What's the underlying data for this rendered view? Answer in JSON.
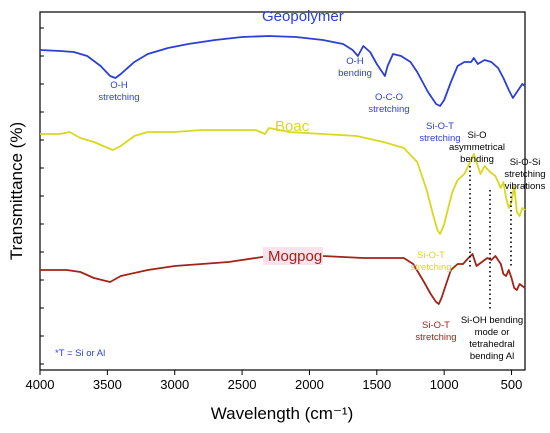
{
  "chart_data": {
    "type": "line",
    "title": "",
    "xlabel": "Wavelength (cm⁻¹)",
    "ylabel": "Transmittance (%)",
    "xlim": [
      4000,
      400
    ],
    "x_reversed": true,
    "x_ticks": [
      4000,
      3500,
      3000,
      2500,
      2000,
      1500,
      1000,
      500
    ],
    "y_tick_labels": false,
    "grid": false,
    "series": [
      {
        "name": "Geopolymer",
        "color": "#2b3fd6",
        "points": [
          [
            4000,
            14
          ],
          [
            3850,
            14.5
          ],
          [
            3750,
            15
          ],
          [
            3650,
            17
          ],
          [
            3550,
            22
          ],
          [
            3480,
            27
          ],
          [
            3440,
            28
          ],
          [
            3400,
            26
          ],
          [
            3300,
            20
          ],
          [
            3200,
            16
          ],
          [
            3050,
            13
          ],
          [
            2900,
            11
          ],
          [
            2700,
            9
          ],
          [
            2500,
            7.5
          ],
          [
            2300,
            7
          ],
          [
            2100,
            7.5
          ],
          [
            1900,
            9
          ],
          [
            1750,
            11
          ],
          [
            1680,
            14
          ],
          [
            1640,
            17
          ],
          [
            1600,
            12
          ],
          [
            1550,
            15
          ],
          [
            1500,
            21
          ],
          [
            1470,
            24
          ],
          [
            1440,
            27
          ],
          [
            1420,
            22
          ],
          [
            1380,
            16
          ],
          [
            1320,
            17
          ],
          [
            1250,
            20
          ],
          [
            1200,
            25
          ],
          [
            1120,
            35
          ],
          [
            1060,
            41
          ],
          [
            1030,
            42
          ],
          [
            1000,
            39
          ],
          [
            950,
            30
          ],
          [
            900,
            22
          ],
          [
            850,
            20
          ],
          [
            800,
            20
          ],
          [
            780,
            18
          ],
          [
            750,
            21
          ],
          [
            700,
            19
          ],
          [
            650,
            20
          ],
          [
            600,
            23
          ],
          [
            560,
            28
          ],
          [
            520,
            34
          ],
          [
            490,
            38
          ],
          [
            460,
            35
          ],
          [
            420,
            31
          ],
          [
            400,
            32
          ]
        ]
      },
      {
        "name": "Boac",
        "color": "#d8d81e",
        "points": [
          [
            4000,
            56
          ],
          [
            3850,
            56
          ],
          [
            3780,
            55
          ],
          [
            3700,
            58
          ],
          [
            3600,
            60
          ],
          [
            3530,
            62
          ],
          [
            3460,
            64
          ],
          [
            3400,
            62
          ],
          [
            3300,
            57
          ],
          [
            3200,
            55
          ],
          [
            3000,
            55
          ],
          [
            2800,
            54
          ],
          [
            2600,
            54
          ],
          [
            2400,
            54
          ],
          [
            2330,
            56
          ],
          [
            2300,
            53
          ],
          [
            2150,
            55
          ],
          [
            1900,
            56
          ],
          [
            1650,
            57
          ],
          [
            1450,
            60
          ],
          [
            1300,
            63
          ],
          [
            1200,
            70
          ],
          [
            1130,
            84
          ],
          [
            1080,
            97
          ],
          [
            1050,
            104
          ],
          [
            1030,
            106
          ],
          [
            1000,
            101
          ],
          [
            970,
            93
          ],
          [
            940,
            85
          ],
          [
            900,
            79
          ],
          [
            850,
            76
          ],
          [
            800,
            69
          ],
          [
            780,
            66
          ],
          [
            760,
            70
          ],
          [
            730,
            76
          ],
          [
            700,
            72
          ],
          [
            660,
            75
          ],
          [
            620,
            77
          ],
          [
            580,
            83
          ],
          [
            560,
            80
          ],
          [
            540,
            88
          ],
          [
            520,
            93
          ],
          [
            500,
            90
          ],
          [
            480,
            82
          ],
          [
            460,
            95
          ],
          [
            440,
            97
          ],
          [
            420,
            93
          ],
          [
            400,
            94
          ]
        ]
      },
      {
        "name": "Mogpog",
        "color": "#a02418",
        "points": [
          [
            4000,
            124
          ],
          [
            3800,
            124
          ],
          [
            3700,
            125
          ],
          [
            3600,
            128
          ],
          [
            3480,
            130
          ],
          [
            3400,
            127
          ],
          [
            3200,
            124
          ],
          [
            3000,
            122
          ],
          [
            2800,
            121
          ],
          [
            2600,
            120
          ],
          [
            2400,
            118
          ],
          [
            2300,
            117
          ],
          [
            2100,
            116
          ],
          [
            1900,
            117
          ],
          [
            1600,
            118
          ],
          [
            1450,
            118
          ],
          [
            1300,
            118
          ],
          [
            1230,
            121
          ],
          [
            1150,
            130
          ],
          [
            1100,
            136
          ],
          [
            1060,
            140
          ],
          [
            1040,
            141
          ],
          [
            1020,
            138
          ],
          [
            990,
            132
          ],
          [
            950,
            124
          ],
          [
            900,
            121
          ],
          [
            860,
            121
          ],
          [
            820,
            118
          ],
          [
            790,
            116
          ],
          [
            760,
            122
          ],
          [
            720,
            120
          ],
          [
            680,
            118
          ],
          [
            650,
            119
          ],
          [
            620,
            117
          ],
          [
            580,
            121
          ],
          [
            560,
            126
          ],
          [
            540,
            127
          ],
          [
            520,
            124
          ],
          [
            500,
            128
          ],
          [
            480,
            133
          ],
          [
            460,
            134
          ],
          [
            440,
            131
          ],
          [
            420,
            132
          ],
          [
            400,
            133
          ]
        ]
      }
    ]
  },
  "series_labels": {
    "geopolymer": "Geopolymer",
    "boac": "Boac",
    "mogpog": "Mogpog"
  },
  "annotations": {
    "oh_stretch": [
      "O-H",
      "stretching"
    ],
    "oh_bend": [
      "O-H",
      "bending"
    ],
    "oco_stretch": [
      "O-C-O",
      "stretching"
    ],
    "siot_geo": [
      "Si-O-T",
      "stretching"
    ],
    "sio_asym": [
      "Si-O",
      "asymmetrical",
      "bending"
    ],
    "siosi": [
      "Si-O-Si",
      "stretching",
      "vibrations"
    ],
    "siot_boac": [
      "Si-O-T",
      "stretching"
    ],
    "siot_mog": [
      "Si-O-T",
      "stretching"
    ],
    "sioh_bend": [
      "Si-OH bending",
      "mode or",
      "tetrahedral",
      "bending Al"
    ],
    "footnote": "*T = Si or Al"
  },
  "colors": {
    "geopolymer": "#2b3fd6",
    "boac": "#d8d81e",
    "mogpog": "#a02418",
    "label_bg": "#fbe1ec"
  }
}
